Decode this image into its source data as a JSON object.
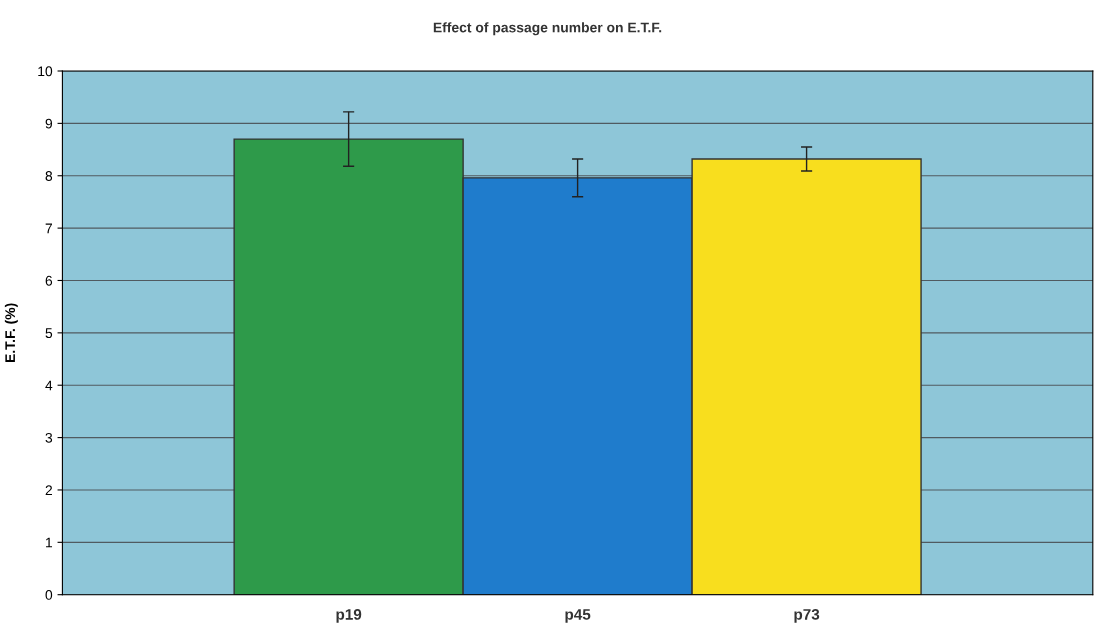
{
  "chart_data": {
    "type": "bar",
    "title": "Effect of passage number on E.T.F.",
    "ylabel": "E.T.F. (%)",
    "categories": [
      "p19",
      "p45",
      "p73"
    ],
    "values": [
      8.7,
      7.96,
      8.32
    ],
    "errors": [
      0.52,
      0.36,
      0.23
    ],
    "colors": [
      "#2e9a4a",
      "#1f7ccc",
      "#f8de1e"
    ],
    "ylim": [
      0,
      10
    ],
    "yticks": [
      0,
      1,
      2,
      3,
      4,
      5,
      6,
      7,
      8,
      9,
      10
    ],
    "grid": "y",
    "legend": false
  }
}
